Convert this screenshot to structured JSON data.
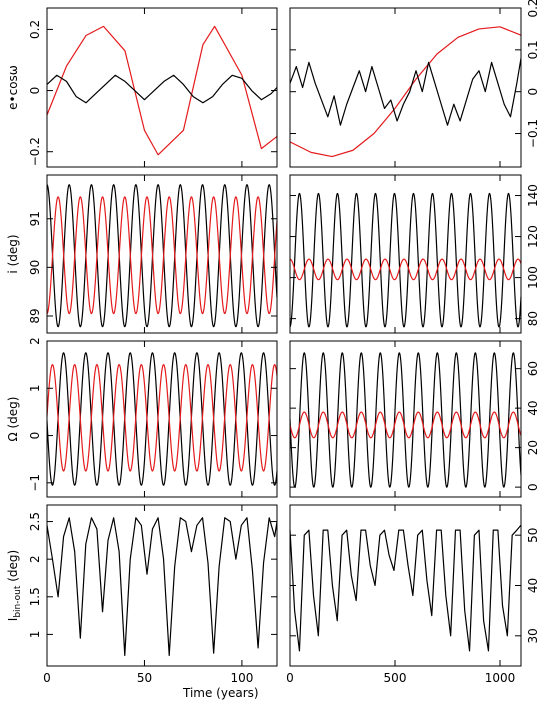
{
  "colors": {
    "primary": "#000000",
    "secondary": "#e41a1c"
  },
  "figure": {
    "xlabel": "Time (years)"
  },
  "chart_data": [
    {
      "id": "ecos-left",
      "type": "line",
      "ylabel": "e•cosω",
      "xlim": [
        0,
        118
      ],
      "ylim": [
        -0.25,
        0.27
      ],
      "xticks": [
        0,
        50,
        100
      ],
      "yticks": [
        -0.2,
        0,
        0.2
      ],
      "ytick_labels": [
        "−0.2",
        "0",
        "0.2"
      ],
      "yaxis_side": "left",
      "series": [
        {
          "color": "secondary",
          "x": [
            0,
            10,
            20,
            29,
            40,
            50,
            57,
            70,
            80,
            86,
            100,
            110,
            118
          ],
          "y": [
            -0.08,
            0.08,
            0.18,
            0.21,
            0.13,
            -0.13,
            -0.21,
            -0.13,
            0.15,
            0.21,
            0.05,
            -0.19,
            -0.15
          ]
        },
        {
          "color": "primary",
          "x": [
            0,
            5,
            10,
            15,
            20,
            25,
            30,
            35,
            40,
            45,
            50,
            55,
            60,
            65,
            70,
            75,
            80,
            85,
            90,
            95,
            100,
            105,
            110,
            115,
            118
          ],
          "y": [
            0.02,
            0.05,
            0.03,
            -0.02,
            -0.04,
            -0.01,
            0.02,
            0.05,
            0.03,
            0.0,
            -0.03,
            0.0,
            0.03,
            0.05,
            0.02,
            -0.02,
            -0.04,
            -0.02,
            0.02,
            0.05,
            0.04,
            0.0,
            -0.03,
            -0.01,
            0.01
          ]
        }
      ]
    },
    {
      "id": "ecos-right",
      "type": "line",
      "xlim": [
        0,
        1100
      ],
      "ylim": [
        -0.18,
        0.2
      ],
      "xticks": [
        0,
        500,
        1000
      ],
      "yticks": [
        -0.1,
        0,
        0.1,
        0.2
      ],
      "ytick_labels": [
        "−0.1",
        "0",
        "0.1",
        "0.2"
      ],
      "yaxis_side": "right",
      "series": [
        {
          "color": "secondary",
          "x": [
            0,
            100,
            200,
            300,
            400,
            500,
            600,
            700,
            800,
            900,
            1000,
            1100
          ],
          "y": [
            -0.12,
            -0.145,
            -0.155,
            -0.14,
            -0.1,
            -0.04,
            0.03,
            0.09,
            0.13,
            0.15,
            0.155,
            0.135
          ]
        },
        {
          "color": "primary",
          "x": [
            0,
            30,
            60,
            90,
            120,
            150,
            180,
            210,
            240,
            270,
            300,
            330,
            360,
            390,
            420,
            450,
            480,
            510,
            540,
            570,
            600,
            630,
            660,
            690,
            720,
            750,
            780,
            810,
            840,
            870,
            900,
            930,
            960,
            990,
            1020,
            1050,
            1080,
            1100
          ],
          "y": [
            0.02,
            0.06,
            0.01,
            0.07,
            0.02,
            -0.02,
            -0.06,
            -0.01,
            -0.08,
            -0.03,
            0.01,
            0.05,
            0.0,
            0.06,
            0.01,
            -0.04,
            -0.02,
            -0.07,
            -0.03,
            0.0,
            0.05,
            0.0,
            0.07,
            0.02,
            -0.03,
            -0.08,
            -0.03,
            -0.07,
            -0.02,
            0.03,
            0.05,
            0.0,
            0.07,
            0.02,
            -0.03,
            -0.06,
            0.02,
            0.08
          ]
        }
      ]
    },
    {
      "id": "inc-left",
      "type": "line",
      "ylabel": "i (deg)",
      "xlim": [
        0,
        118
      ],
      "ylim": [
        88.65,
        91.9
      ],
      "xticks": [
        0,
        50,
        100
      ],
      "yticks": [
        89,
        90,
        91
      ],
      "ytick_labels": [
        "89",
        "90",
        "91"
      ],
      "yaxis_side": "left",
      "series": [
        {
          "color": "primary",
          "wave": {
            "period": 11.4,
            "phase": 0,
            "min": 88.78,
            "max": 91.7,
            "start": "max"
          }
        },
        {
          "color": "secondary",
          "wave": {
            "period": 11.4,
            "phase": 5.7,
            "min": 89.05,
            "max": 91.45,
            "start": "max"
          }
        }
      ]
    },
    {
      "id": "inc-right",
      "type": "line",
      "xlim": [
        0,
        1100
      ],
      "ylim": [
        73,
        150
      ],
      "xticks": [
        0,
        500,
        1000
      ],
      "yticks": [
        80,
        100,
        120,
        140
      ],
      "ytick_labels": [
        "80",
        "100",
        "120",
        "140"
      ],
      "yaxis_side": "right",
      "series": [
        {
          "color": "primary",
          "wave": {
            "period": 90.5,
            "phase": 45,
            "min": 76,
            "max": 141,
            "start": "max"
          }
        },
        {
          "color": "secondary",
          "wave": {
            "period": 90.5,
            "phase": 0,
            "min": 99,
            "max": 109,
            "start": "max"
          }
        }
      ]
    },
    {
      "id": "node-left",
      "type": "line",
      "ylabel": "Ω (deg)",
      "xlim": [
        0,
        118
      ],
      "ylim": [
        -1.3,
        2.0
      ],
      "xticks": [
        0,
        50,
        100
      ],
      "yticks": [
        -1,
        0,
        1,
        2
      ],
      "ytick_labels": [
        "−1",
        "0",
        "1",
        "2"
      ],
      "yaxis_side": "left",
      "series": [
        {
          "color": "primary",
          "wave": {
            "period": 11.4,
            "phase": 8.5,
            "min": -1.05,
            "max": 1.75,
            "start": "max"
          }
        },
        {
          "color": "secondary",
          "wave": {
            "period": 11.4,
            "phase": 2.8,
            "min": -0.75,
            "max": 1.5,
            "start": "max"
          }
        }
      ]
    },
    {
      "id": "node-right",
      "type": "line",
      "xlim": [
        0,
        1100
      ],
      "ylim": [
        -5,
        74
      ],
      "xticks": [
        0,
        500,
        1000
      ],
      "yticks": [
        0,
        20,
        40,
        60
      ],
      "ytick_labels": [
        "0",
        "20",
        "40",
        "60"
      ],
      "yaxis_side": "right",
      "series": [
        {
          "color": "primary",
          "wave": {
            "period": 90.5,
            "phase": 68,
            "min": 0,
            "max": 68,
            "start": "max"
          }
        },
        {
          "color": "secondary",
          "wave": {
            "period": 90.5,
            "phase": 68,
            "min": 25,
            "max": 38,
            "start": "max"
          }
        }
      ]
    },
    {
      "id": "ibin-left",
      "type": "line",
      "ylabel": "I_bin-out (deg)",
      "xlim": [
        0,
        118
      ],
      "ylim": [
        0.58,
        2.72
      ],
      "xticks": [
        0,
        50,
        100
      ],
      "yticks": [
        1,
        1.5,
        2,
        2.5
      ],
      "ytick_labels": [
        "1",
        "1.5",
        "2",
        "2.5"
      ],
      "yaxis_side": "left",
      "series": [
        {
          "color": "primary",
          "x": [
            0,
            2.8,
            5.7,
            8.5,
            11.4,
            14.2,
            17.1,
            19.9,
            22.8,
            25.6,
            28.5,
            31.3,
            34.2,
            37.0,
            39.9,
            42.7,
            45.6,
            48.4,
            51.3,
            54.1,
            57.0,
            59.8,
            62.7,
            65.5,
            68.4,
            71.2,
            74.1,
            76.9,
            79.8,
            82.6,
            85.5,
            88.3,
            91.2,
            94.0,
            96.9,
            99.7,
            102.6,
            105.4,
            108.3,
            111.1,
            114.0,
            116.8,
            118
          ],
          "y": [
            2.45,
            2.0,
            1.5,
            2.3,
            2.55,
            2.1,
            0.95,
            2.2,
            2.55,
            2.4,
            1.3,
            2.25,
            2.55,
            2.1,
            0.72,
            2.0,
            2.55,
            2.45,
            1.8,
            2.4,
            2.55,
            2.0,
            0.72,
            1.9,
            2.55,
            2.5,
            2.1,
            2.45,
            2.55,
            1.95,
            0.75,
            1.9,
            2.55,
            2.5,
            2.0,
            2.45,
            2.55,
            1.85,
            0.82,
            1.95,
            2.55,
            2.3,
            2.5
          ]
        }
      ]
    },
    {
      "id": "ibin-right",
      "type": "line",
      "xlim": [
        0,
        1100
      ],
      "ylim": [
        24,
        56
      ],
      "xticks": [
        0,
        500,
        1000
      ],
      "yticks": [
        30,
        40,
        50
      ],
      "ytick_labels": [
        "30",
        "40",
        "50"
      ],
      "yaxis_side": "right",
      "series": [
        {
          "color": "primary",
          "x": [
            0,
            22,
            45,
            68,
            90,
            112,
            135,
            158,
            180,
            202,
            225,
            248,
            270,
            292,
            315,
            338,
            360,
            382,
            405,
            428,
            450,
            472,
            495,
            518,
            540,
            562,
            585,
            608,
            630,
            652,
            675,
            698,
            720,
            742,
            765,
            788,
            810,
            832,
            855,
            878,
            900,
            922,
            945,
            968,
            990,
            1012,
            1035,
            1058,
            1080,
            1100
          ],
          "y": [
            51,
            35,
            27,
            50,
            51,
            38,
            30,
            51,
            51,
            40,
            33,
            50,
            51,
            42,
            37,
            51,
            51,
            44,
            40,
            50,
            51,
            46,
            43,
            51,
            51,
            44,
            38,
            50,
            51,
            41,
            34,
            51,
            51,
            38,
            30,
            51,
            51,
            35,
            27,
            50,
            51,
            33,
            27,
            51,
            51,
            36,
            30,
            50,
            51,
            52
          ]
        }
      ]
    }
  ]
}
